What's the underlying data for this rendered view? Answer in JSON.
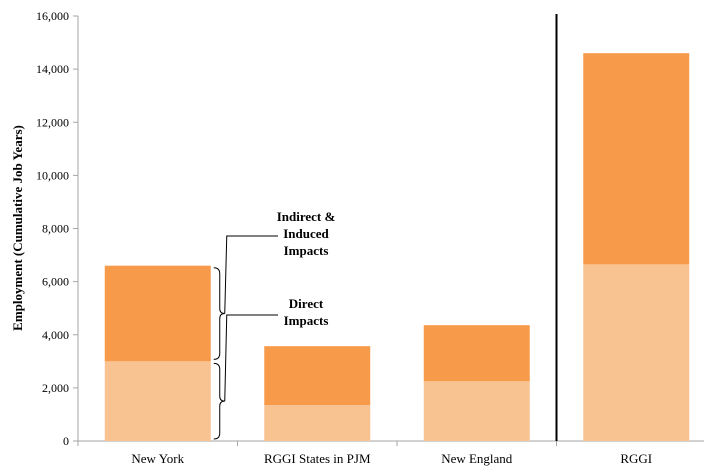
{
  "chart_data": {
    "type": "bar",
    "stacked": true,
    "categories": [
      "New York",
      "RGGI States in PJM",
      "New England",
      "RGGI"
    ],
    "series": [
      {
        "values": [
          3000,
          1350,
          2250,
          6650
        ],
        "color": "#f9c291"
      },
      {
        "values": [
          3600,
          2220,
          2110,
          7950
        ],
        "color": "#f79a4a"
      }
    ],
    "ylabel": "Employment (Cumulative Job Years)",
    "ylim": [
      0,
      16000
    ],
    "yticks": [
      0,
      2000,
      4000,
      6000,
      8000,
      10000,
      12000,
      14000,
      16000
    ],
    "ytick_labels": [
      "0",
      "2,000",
      "4,000",
      "6,000",
      "8,000",
      "10,000",
      "12,000",
      "14,000",
      "16,000"
    ],
    "grid": false,
    "separator_before_category": "RGGI",
    "annotations": [
      {
        "lines": [
          "Indirect &",
          "Induced",
          "Impacts"
        ],
        "series_index": 1
      },
      {
        "lines": [
          "Direct",
          "Impacts"
        ],
        "series_index": 0
      }
    ]
  }
}
